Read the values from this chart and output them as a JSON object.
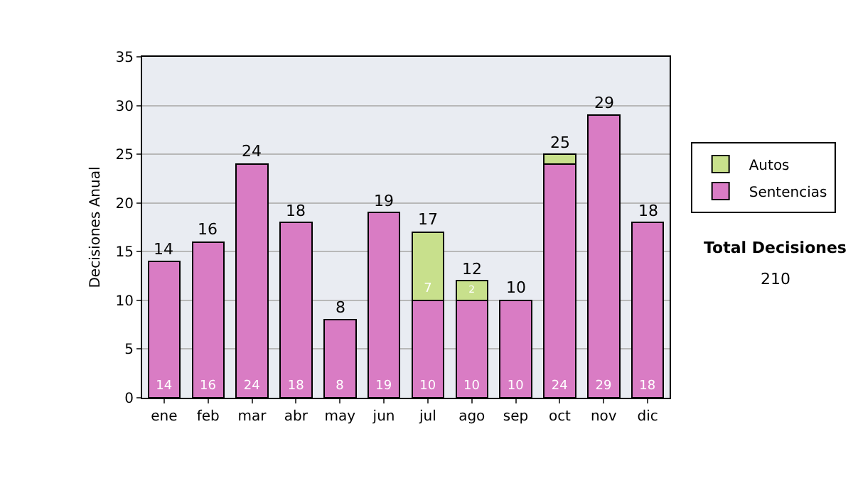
{
  "chart_data": {
    "type": "bar",
    "stacked": true,
    "ylabel": "Decisiones Anual",
    "categories": [
      "ene",
      "feb",
      "mar",
      "abr",
      "may",
      "jun",
      "jul",
      "ago",
      "sep",
      "oct",
      "nov",
      "dic"
    ],
    "series": [
      {
        "name": "Sentencias",
        "color": "#d97cc4",
        "values": [
          14,
          16,
          24,
          18,
          8,
          19,
          10,
          10,
          10,
          24,
          29,
          18
        ],
        "value_labels": [
          "14",
          "16",
          "24",
          "18",
          "8",
          "19",
          "10",
          "10",
          "10",
          "24",
          "29",
          "18"
        ]
      },
      {
        "name": "Autos",
        "color": "#c8e08c",
        "values": [
          null,
          null,
          null,
          null,
          null,
          null,
          7,
          2,
          null,
          1,
          null,
          null
        ],
        "value_labels": [
          null,
          null,
          null,
          null,
          null,
          null,
          "7",
          "2",
          null,
          null,
          null,
          null
        ]
      }
    ],
    "totals": [
      "14",
      "16",
      "24",
      "18",
      "8",
      "19",
      "17",
      "12",
      "10",
      "25",
      "29",
      "18"
    ],
    "ylim": [
      0,
      35
    ],
    "yticks": [
      0,
      5,
      10,
      15,
      20,
      25,
      30,
      35
    ],
    "grid": "y",
    "legend": "right",
    "annotations": [
      "Total Decisiones",
      "210"
    ]
  }
}
